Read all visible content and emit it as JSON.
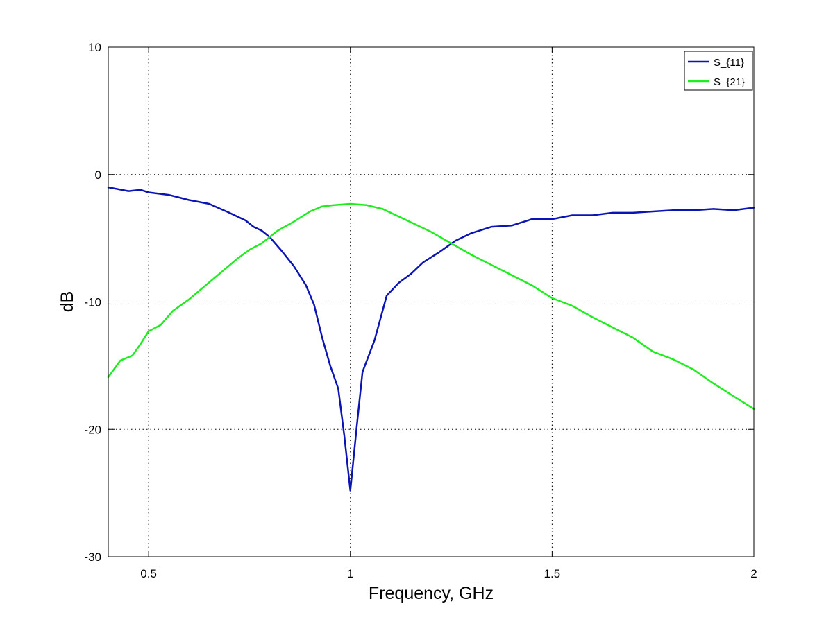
{
  "chart_data": {
    "type": "line",
    "title": "",
    "xlabel": "Frequency, GHz",
    "ylabel": "dB",
    "xlim": [
      0.4,
      2.0
    ],
    "ylim": [
      -30,
      10
    ],
    "xticks": [
      0.5,
      1,
      1.5,
      2
    ],
    "yticks": [
      10,
      0,
      -10,
      -20,
      -30
    ],
    "xtick_labels": [
      "0.5",
      "1",
      "1.5",
      "2"
    ],
    "ytick_labels": [
      "10",
      "0",
      "-10",
      "-20",
      "-30"
    ],
    "grid": true,
    "legend_position": "top-right",
    "series": [
      {
        "name": "S_{11}",
        "color": "#0a14b4",
        "points": [
          [
            0.4,
            -1.0
          ],
          [
            0.45,
            -1.3
          ],
          [
            0.48,
            -1.2
          ],
          [
            0.5,
            -1.4
          ],
          [
            0.55,
            -1.6
          ],
          [
            0.6,
            -2.0
          ],
          [
            0.65,
            -2.3
          ],
          [
            0.7,
            -3.0
          ],
          [
            0.74,
            -3.6
          ],
          [
            0.76,
            -4.1
          ],
          [
            0.78,
            -4.4
          ],
          [
            0.8,
            -4.9
          ],
          [
            0.83,
            -6.0
          ],
          [
            0.86,
            -7.2
          ],
          [
            0.89,
            -8.7
          ],
          [
            0.91,
            -10.2
          ],
          [
            0.93,
            -12.8
          ],
          [
            0.95,
            -15.0
          ],
          [
            0.97,
            -16.8
          ],
          [
            0.985,
            -20.5
          ],
          [
            1.0,
            -24.8
          ],
          [
            1.015,
            -20.0
          ],
          [
            1.03,
            -15.5
          ],
          [
            1.06,
            -13.0
          ],
          [
            1.09,
            -9.5
          ],
          [
            1.12,
            -8.5
          ],
          [
            1.15,
            -7.8
          ],
          [
            1.18,
            -6.9
          ],
          [
            1.22,
            -6.1
          ],
          [
            1.26,
            -5.2
          ],
          [
            1.3,
            -4.6
          ],
          [
            1.35,
            -4.1
          ],
          [
            1.4,
            -4.0
          ],
          [
            1.45,
            -3.5
          ],
          [
            1.5,
            -3.5
          ],
          [
            1.55,
            -3.2
          ],
          [
            1.6,
            -3.2
          ],
          [
            1.65,
            -3.0
          ],
          [
            1.7,
            -3.0
          ],
          [
            1.75,
            -2.9
          ],
          [
            1.8,
            -2.8
          ],
          [
            1.85,
            -2.8
          ],
          [
            1.9,
            -2.7
          ],
          [
            1.95,
            -2.8
          ],
          [
            2.0,
            -2.6
          ]
        ]
      },
      {
        "name": "S_{21}",
        "color": "#1eee1e",
        "points": [
          [
            0.4,
            -15.9
          ],
          [
            0.43,
            -14.6
          ],
          [
            0.46,
            -14.2
          ],
          [
            0.48,
            -13.3
          ],
          [
            0.5,
            -12.3
          ],
          [
            0.53,
            -11.8
          ],
          [
            0.56,
            -10.7
          ],
          [
            0.6,
            -9.8
          ],
          [
            0.63,
            -9.0
          ],
          [
            0.66,
            -8.2
          ],
          [
            0.69,
            -7.4
          ],
          [
            0.72,
            -6.6
          ],
          [
            0.75,
            -5.9
          ],
          [
            0.78,
            -5.4
          ],
          [
            0.82,
            -4.4
          ],
          [
            0.86,
            -3.7
          ],
          [
            0.9,
            -2.9
          ],
          [
            0.93,
            -2.5
          ],
          [
            0.96,
            -2.4
          ],
          [
            1.0,
            -2.3
          ],
          [
            1.04,
            -2.4
          ],
          [
            1.08,
            -2.7
          ],
          [
            1.12,
            -3.3
          ],
          [
            1.16,
            -3.9
          ],
          [
            1.2,
            -4.5
          ],
          [
            1.25,
            -5.4
          ],
          [
            1.3,
            -6.3
          ],
          [
            1.35,
            -7.1
          ],
          [
            1.4,
            -7.9
          ],
          [
            1.45,
            -8.7
          ],
          [
            1.5,
            -9.7
          ],
          [
            1.55,
            -10.3
          ],
          [
            1.6,
            -11.2
          ],
          [
            1.65,
            -12.0
          ],
          [
            1.7,
            -12.8
          ],
          [
            1.75,
            -13.9
          ],
          [
            1.8,
            -14.5
          ],
          [
            1.85,
            -15.3
          ],
          [
            1.9,
            -16.4
          ],
          [
            1.95,
            -17.4
          ],
          [
            2.0,
            -18.4
          ]
        ]
      }
    ]
  }
}
